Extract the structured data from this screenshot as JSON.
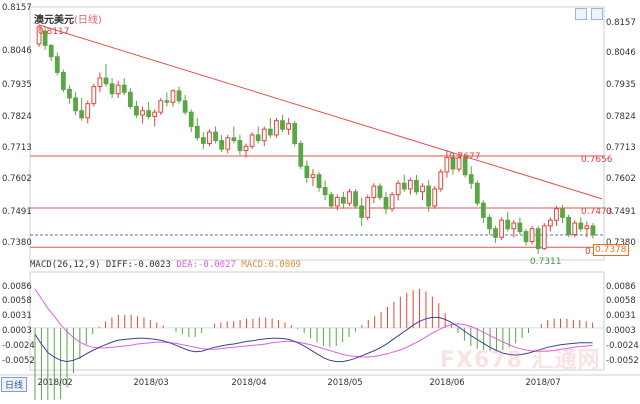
{
  "title": "澳元美元",
  "period": "(日线)",
  "period_tab": "日线",
  "price_axis": [
    "0.8157",
    "0.8046",
    "0.7935",
    "0.7824",
    "0.7713",
    "0.7602",
    "0.7491",
    "0.7380"
  ],
  "macd_axis": [
    "0.0086",
    "0.0058",
    "0.0031",
    "0.0003",
    "-0.0024",
    "-0.0052"
  ],
  "macd_legend": {
    "name": "MACD(26,12,9)",
    "diff": "DIFF:-0.0023",
    "dea": "DEA:-0.0027",
    "macd": "MACD:0.0009"
  },
  "annotations": {
    "high": "0.8117",
    "swing_high": "0.7677",
    "low": "0.7311",
    "level_upper": "0.7656",
    "level_mid": "0.7473",
    "level_lower": "0.7335",
    "current": "0.7378"
  },
  "watermark": "FX678 汇通网",
  "colors": {
    "up": "#e0463c",
    "down": "#5aa646",
    "resistance": "#e05050",
    "current": "#4a78c8",
    "dea": "#e060e0",
    "diff": "#404090"
  },
  "chart_data": [
    {
      "type": "candlestick",
      "title": "澳元美元 (日线)",
      "x_axis": [
        "2018/02",
        "2018/03",
        "2018/04",
        "2018/05",
        "2018/06",
        "2018/07"
      ],
      "ylim": [
        0.7335,
        0.8157
      ],
      "levels": [
        0.7656,
        0.7473,
        0.7335
      ],
      "current_price": 0.7378,
      "trendline": [
        {
          "x": "2018/01/26",
          "y": 0.8117
        },
        {
          "x": "2018/07/20",
          "y": 0.7505
        }
      ],
      "annotations": [
        {
          "label": "0.8117",
          "value": 0.8117
        },
        {
          "label": "0.7677",
          "value": 0.7677
        },
        {
          "label": "0.7311",
          "value": 0.7311
        }
      ],
      "series": [
        {
          "ohlc": [
            [
              0.805,
              0.8117,
              0.804,
              0.811
            ],
            [
              0.8095,
              0.811,
              0.803,
              0.8045
            ],
            [
              0.8045,
              0.805,
              0.799,
              0.8005
            ],
            [
              0.8005,
              0.802,
              0.794,
              0.795
            ],
            [
              0.795,
              0.796,
              0.788,
              0.789
            ],
            [
              0.789,
              0.7905,
              0.784,
              0.786
            ],
            [
              0.786,
              0.788,
              0.78,
              0.7815
            ],
            [
              0.7815,
              0.786,
              0.778,
              0.779
            ],
            [
              0.779,
              0.785,
              0.777,
              0.784
            ],
            [
              0.784,
              0.791,
              0.783,
              0.79
            ],
            [
              0.79,
              0.795,
              0.788,
              0.793
            ],
            [
              0.793,
              0.798,
              0.79,
              0.791
            ],
            [
              0.791,
              0.793,
              0.786,
              0.7875
            ],
            [
              0.7875,
              0.792,
              0.786,
              0.7905
            ],
            [
              0.7905,
              0.793,
              0.787,
              0.788
            ],
            [
              0.788,
              0.7895,
              0.782,
              0.783
            ],
            [
              0.783,
              0.785,
              0.779,
              0.78
            ],
            [
              0.78,
              0.783,
              0.777,
              0.7815
            ],
            [
              0.7815,
              0.7845,
              0.7785,
              0.7795
            ],
            [
              0.7795,
              0.782,
              0.776,
              0.781
            ],
            [
              0.781,
              0.786,
              0.78,
              0.785
            ],
            [
              0.785,
              0.788,
              0.783,
              0.7845
            ],
            [
              0.7845,
              0.789,
              0.783,
              0.7885
            ],
            [
              0.7885,
              0.79,
              0.784,
              0.785
            ],
            [
              0.785,
              0.787,
              0.78,
              0.781
            ],
            [
              0.781,
              0.782,
              0.774,
              0.776
            ],
            [
              0.776,
              0.779,
              0.771,
              0.772
            ],
            [
              0.772,
              0.774,
              0.768,
              0.77
            ],
            [
              0.77,
              0.775,
              0.769,
              0.774
            ],
            [
              0.774,
              0.776,
              0.77,
              0.771
            ],
            [
              0.771,
              0.773,
              0.767,
              0.768
            ],
            [
              0.768,
              0.773,
              0.7665,
              0.772
            ],
            [
              0.772,
              0.776,
              0.77,
              0.771
            ],
            [
              0.771,
              0.773,
              0.766,
              0.7675
            ],
            [
              0.7675,
              0.77,
              0.765,
              0.769
            ],
            [
              0.769,
              0.774,
              0.768,
              0.773
            ],
            [
              0.773,
              0.776,
              0.77,
              0.771
            ],
            [
              0.771,
              0.776,
              0.769,
              0.775
            ],
            [
              0.775,
              0.779,
              0.772,
              0.773
            ],
            [
              0.773,
              0.779,
              0.772,
              0.778
            ],
            [
              0.778,
              0.78,
              0.774,
              0.775
            ],
            [
              0.775,
              0.779,
              0.773,
              0.777
            ],
            [
              0.777,
              0.778,
              0.769,
              0.77
            ],
            [
              0.77,
              0.771,
              0.761,
              0.762
            ],
            [
              0.762,
              0.764,
              0.756,
              0.758
            ],
            [
              0.758,
              0.761,
              0.755,
              0.759
            ],
            [
              0.759,
              0.76,
              0.753,
              0.7545
            ],
            [
              0.7545,
              0.757,
              0.75,
              0.752
            ],
            [
              0.752,
              0.753,
              0.747,
              0.748
            ],
            [
              0.748,
              0.752,
              0.7465,
              0.751
            ],
            [
              0.751,
              0.753,
              0.747,
              0.749
            ],
            [
              0.749,
              0.754,
              0.748,
              0.753
            ],
            [
              0.753,
              0.754,
              0.747,
              0.748
            ],
            [
              0.748,
              0.751,
              0.741,
              0.744
            ],
            [
              0.744,
              0.752,
              0.743,
              0.751
            ],
            [
              0.751,
              0.756,
              0.749,
              0.755
            ],
            [
              0.755,
              0.756,
              0.75,
              0.751
            ],
            [
              0.751,
              0.753,
              0.745,
              0.747
            ],
            [
              0.747,
              0.753,
              0.746,
              0.752
            ],
            [
              0.752,
              0.757,
              0.75,
              0.756
            ],
            [
              0.756,
              0.759,
              0.753,
              0.754
            ],
            [
              0.754,
              0.758,
              0.752,
              0.757
            ],
            [
              0.757,
              0.759,
              0.752,
              0.753
            ],
            [
              0.753,
              0.756,
              0.75,
              0.755
            ],
            [
              0.755,
              0.757,
              0.746,
              0.748
            ],
            [
              0.748,
              0.755,
              0.747,
              0.754
            ],
            [
              0.754,
              0.761,
              0.753,
              0.76
            ],
            [
              0.76,
              0.7677,
              0.758,
              0.765
            ],
            [
              0.765,
              0.766,
              0.759,
              0.761
            ],
            [
              0.761,
              0.767,
              0.76,
              0.765
            ],
            [
              0.765,
              0.766,
              0.758,
              0.759
            ],
            [
              0.759,
              0.762,
              0.754,
              0.756
            ],
            [
              0.756,
              0.757,
              0.748,
              0.749
            ],
            [
              0.749,
              0.75,
              0.742,
              0.744
            ],
            [
              0.744,
              0.745,
              0.738,
              0.74
            ],
            [
              0.74,
              0.741,
              0.735,
              0.737
            ],
            [
              0.737,
              0.744,
              0.736,
              0.743
            ],
            [
              0.743,
              0.746,
              0.739,
              0.74
            ],
            [
              0.74,
              0.743,
              0.737,
              0.742
            ],
            [
              0.742,
              0.744,
              0.738,
              0.739
            ],
            [
              0.739,
              0.74,
              0.734,
              0.7355
            ],
            [
              0.7355,
              0.741,
              0.7345,
              0.74
            ],
            [
              0.74,
              0.741,
              0.7311,
              0.733
            ],
            [
              0.733,
              0.742,
              0.7325,
              0.741
            ],
            [
              0.741,
              0.744,
              0.739,
              0.743
            ],
            [
              0.743,
              0.748,
              0.741,
              0.747
            ],
            [
              0.747,
              0.7483,
              0.742,
              0.744
            ],
            [
              0.744,
              0.745,
              0.737,
              0.738
            ],
            [
              0.738,
              0.743,
              0.737,
              0.742
            ],
            [
              0.742,
              0.744,
              0.739,
              0.74
            ],
            [
              0.74,
              0.7425,
              0.737,
              0.741
            ],
            [
              0.741,
              0.742,
              0.7365,
              0.7378
            ]
          ]
        }
      ]
    },
    {
      "type": "line",
      "title": "MACD(26,12,9)",
      "ylim": [
        -0.0065,
        0.0086
      ],
      "series": [
        {
          "name": "DIFF",
          "values": [
            -0.001,
            -0.0025,
            -0.0038,
            -0.0045,
            -0.005,
            -0.0052,
            -0.005,
            -0.0046,
            -0.004,
            -0.0035,
            -0.003,
            -0.0026,
            -0.0022,
            -0.0019,
            -0.0018,
            -0.0017,
            -0.0016,
            -0.0016,
            -0.0017,
            -0.0018,
            -0.002,
            -0.0023,
            -0.0027,
            -0.0031,
            -0.0035,
            -0.0037,
            -0.0036,
            -0.0033,
            -0.003,
            -0.0028,
            -0.0026,
            -0.0025,
            -0.0023,
            -0.0021,
            -0.002,
            -0.0018,
            -0.0017,
            -0.0016,
            -0.0016,
            -0.0017,
            -0.0019,
            -0.0023,
            -0.0028,
            -0.0034,
            -0.004,
            -0.0046,
            -0.005,
            -0.0052,
            -0.0052,
            -0.005,
            -0.0047,
            -0.0043,
            -0.0039,
            -0.0035,
            -0.003,
            -0.0024,
            -0.0017,
            -0.001,
            -0.0003,
            0.0004,
            0.001,
            0.0014,
            0.0016,
            0.0016,
            0.0013,
            0.0008,
            0.0002,
            -0.0005,
            -0.0012,
            -0.0018,
            -0.0024,
            -0.003,
            -0.0035,
            -0.0039,
            -0.0041,
            -0.0042,
            -0.0041,
            -0.0039,
            -0.0036,
            -0.0033,
            -0.003,
            -0.0028,
            -0.0026,
            -0.0025,
            -0.0024,
            -0.0023,
            -0.0023,
            -0.0023
          ]
        },
        {
          "name": "DEA",
          "values": [
            0.006,
            0.0045,
            0.003,
            0.0018,
            0.0005,
            -0.0006,
            -0.0015,
            -0.0022,
            -0.0027,
            -0.003,
            -0.0031,
            -0.0031,
            -0.003,
            -0.0029,
            -0.0028,
            -0.0027,
            -0.0025,
            -0.0024,
            -0.0023,
            -0.0022,
            -0.0022,
            -0.0023,
            -0.0024,
            -0.0026,
            -0.0028,
            -0.003,
            -0.0032,
            -0.0033,
            -0.0033,
            -0.0032,
            -0.0031,
            -0.003,
            -0.0029,
            -0.0028,
            -0.0027,
            -0.0026,
            -0.0025,
            -0.0023,
            -0.0022,
            -0.0021,
            -0.0021,
            -0.0022,
            -0.0024,
            -0.0026,
            -0.0029,
            -0.0032,
            -0.0035,
            -0.0038,
            -0.0041,
            -0.0043,
            -0.0044,
            -0.0045,
            -0.0045,
            -0.0044,
            -0.0042,
            -0.004,
            -0.0037,
            -0.0034,
            -0.003,
            -0.0025,
            -0.002,
            -0.0014,
            -0.0008,
            -0.0003,
            0.0002,
            0.0005,
            0.0006,
            0.0005,
            0.0002,
            -0.0002,
            -0.0007,
            -0.0012,
            -0.0017,
            -0.0022,
            -0.0026,
            -0.003,
            -0.0033,
            -0.0035,
            -0.0036,
            -0.0036,
            -0.0036,
            -0.0035,
            -0.0033,
            -0.0032,
            -0.003,
            -0.0029,
            -0.0028,
            -0.0027
          ]
        }
      ]
    }
  ]
}
